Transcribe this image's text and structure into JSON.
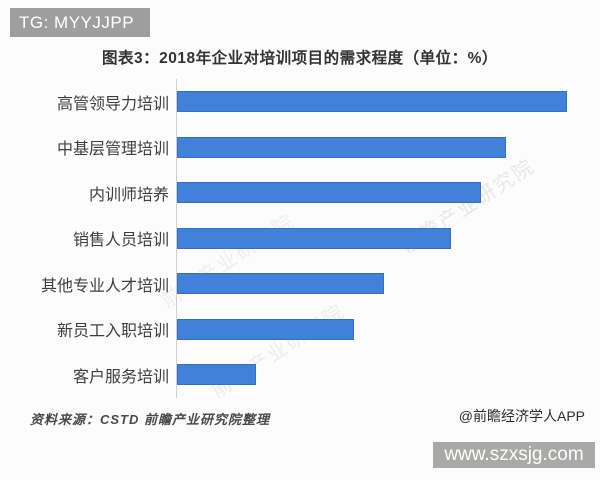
{
  "header": {
    "badge_label": "TG: MYYJJPP"
  },
  "chart_data": {
    "type": "bar",
    "orientation": "horizontal",
    "title": "图表3：2018年企业对培训项目的需求程度（单位：%）",
    "categories": [
      "高管领导力培训",
      "中基层管理培训",
      "内训师培养",
      "销售人员培训",
      "其他专业人才培训",
      "新员工入职培训",
      "客户服务培训"
    ],
    "values": [
      64,
      54,
      50,
      45,
      34,
      29,
      13
    ],
    "unit": "%",
    "xlabel": "",
    "ylabel": "",
    "xlim": [
      0,
      67
    ],
    "grid": false,
    "data_labels": false,
    "legend": false,
    "bar_color": "#4181d9",
    "axis_color": "#cfcfcf"
  },
  "watermark": {
    "text": "前瞻产业研究院"
  },
  "footer": {
    "source": "资料来源：CSTD 前瞻产业研究院整理",
    "credit": "@前瞻经济学人APP",
    "site": "www.szxsjg.com"
  }
}
